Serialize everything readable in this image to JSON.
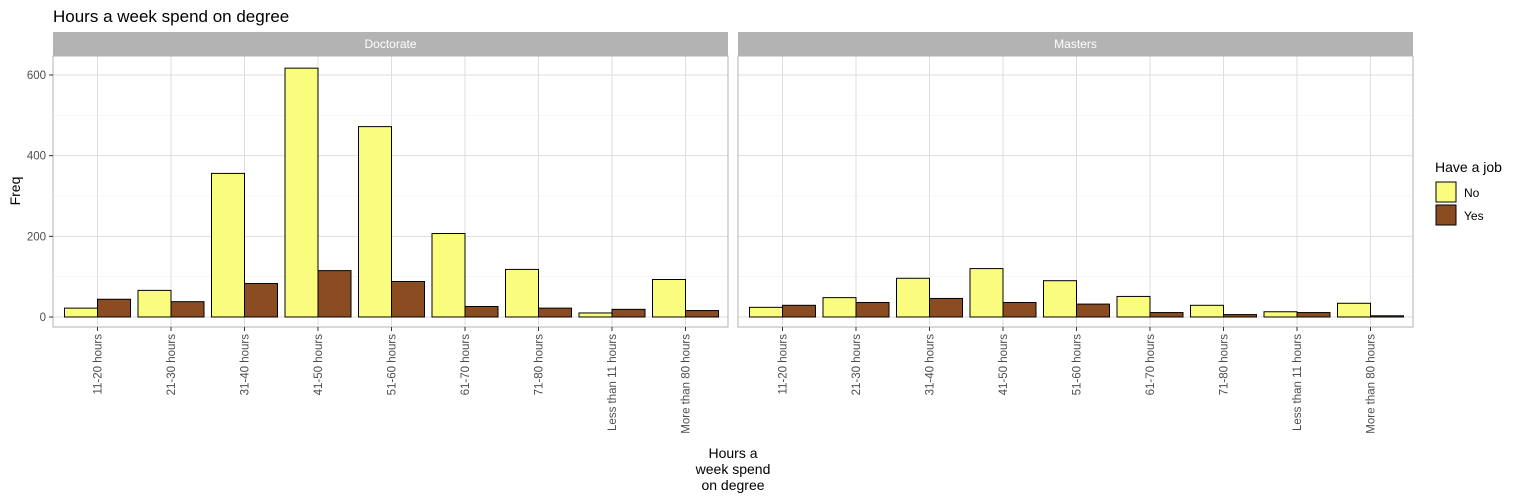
{
  "chart_data": {
    "type": "bar",
    "title": "Hours a week spend on degree",
    "xlabel_lines": [
      "Hours a",
      "week spend",
      "on degree"
    ],
    "ylabel": "Freq",
    "ylim": [
      0,
      680
    ],
    "yticks": [
      0,
      200,
      400,
      600
    ],
    "grid": true,
    "legend": {
      "title": "Have a job",
      "placement": "right"
    },
    "categories": [
      "11-20 hours",
      "21-30 hours",
      "31-40 hours",
      "41-50 hours",
      "51-60 hours",
      "61-70 hours",
      "71-80 hours",
      "Less than 11 hours",
      "More than 80 hours"
    ],
    "facets": [
      {
        "label": "Doctorate",
        "series": [
          {
            "name": "No",
            "color": "#FAFC7E",
            "values": [
              22,
              66,
              356,
              617,
              472,
              207,
              118,
              10,
              93
            ]
          },
          {
            "name": "Yes",
            "color": "#8B4C22",
            "values": [
              44,
              38,
              83,
              115,
              88,
              26,
              22,
              19,
              16
            ]
          }
        ]
      },
      {
        "label": "Masters",
        "series": [
          {
            "name": "No",
            "color": "#FAFC7E",
            "values": [
              24,
              48,
              96,
              120,
              90,
              51,
              29,
              13,
              34
            ]
          },
          {
            "name": "Yes",
            "color": "#8B4C22",
            "values": [
              29,
              36,
              46,
              36,
              32,
              11,
              6,
              11,
              3
            ]
          }
        ]
      }
    ]
  }
}
